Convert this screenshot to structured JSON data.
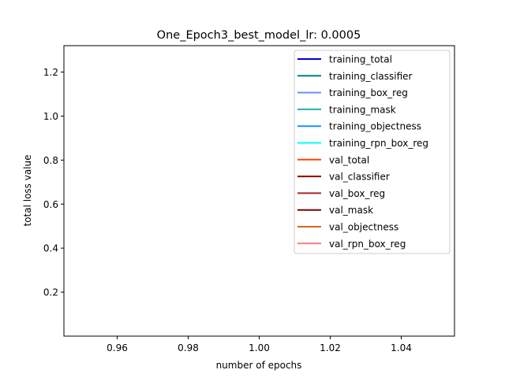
{
  "chart_data": {
    "type": "line",
    "title": "One_Epoch3_best_model_lr: 0.0005",
    "xlabel": "number of epochs",
    "ylabel": "total loss value",
    "xlim": [
      0.945,
      1.055
    ],
    "ylim": [
      0.0,
      1.32
    ],
    "xticks": [
      0.96,
      0.98,
      1.0,
      1.02,
      1.04
    ],
    "xtick_labels": [
      "0.96",
      "0.98",
      "1.00",
      "1.02",
      "1.04"
    ],
    "yticks": [
      0.2,
      0.4,
      0.6,
      0.8,
      1.0,
      1.2
    ],
    "ytick_labels": [
      "0.2",
      "0.4",
      "0.6",
      "0.8",
      "1.0",
      "1.2"
    ],
    "grid": false,
    "legend_position": "top-right",
    "series": [
      {
        "name": "training_total",
        "color": "#0000cd",
        "x": [
          1.0
        ],
        "y": [
          null
        ]
      },
      {
        "name": "training_classifier",
        "color": "#008080",
        "x": [
          1.0
        ],
        "y": [
          null
        ]
      },
      {
        "name": "training_box_reg",
        "color": "#6495ed",
        "x": [
          1.0
        ],
        "y": [
          null
        ]
      },
      {
        "name": "training_mask",
        "color": "#20b2aa",
        "x": [
          1.0
        ],
        "y": [
          null
        ]
      },
      {
        "name": "training_objectness",
        "color": "#1e90ff",
        "x": [
          1.0
        ],
        "y": [
          null
        ]
      },
      {
        "name": "training_rpn_box_reg",
        "color": "#00ffff",
        "x": [
          1.0
        ],
        "y": [
          null
        ]
      },
      {
        "name": "val_total",
        "color": "#ff4500",
        "x": [
          1.0
        ],
        "y": [
          null
        ]
      },
      {
        "name": "val_classifier",
        "color": "#8b0000",
        "x": [
          1.0
        ],
        "y": [
          null
        ]
      },
      {
        "name": "val_box_reg",
        "color": "#a52a2a",
        "x": [
          1.0
        ],
        "y": [
          null
        ]
      },
      {
        "name": "val_mask",
        "color": "#800000",
        "x": [
          1.0
        ],
        "y": [
          null
        ]
      },
      {
        "name": "val_objectness",
        "color": "#d2691e",
        "x": [
          1.0
        ],
        "y": [
          null
        ]
      },
      {
        "name": "val_rpn_box_reg",
        "color": "#f08080",
        "x": [
          1.0
        ],
        "y": [
          null
        ]
      }
    ]
  }
}
